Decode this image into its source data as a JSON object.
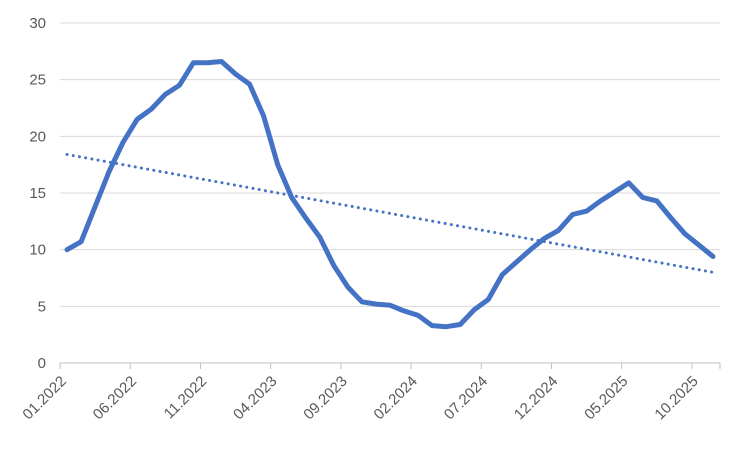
{
  "chart_data": {
    "type": "line",
    "title": "",
    "xlabel": "",
    "ylabel": "",
    "ylim": [
      0,
      30
    ],
    "y_ticks": [
      0,
      5,
      10,
      15,
      20,
      25,
      30
    ],
    "grid": true,
    "legend": "none",
    "x": [
      "01.2022",
      "02.2022",
      "03.2022",
      "04.2022",
      "05.2022",
      "06.2022",
      "07.2022",
      "08.2022",
      "09.2022",
      "10.2022",
      "11.2022",
      "12.2022",
      "01.2023",
      "02.2023",
      "03.2023",
      "04.2023",
      "05.2023",
      "06.2023",
      "07.2023",
      "08.2023",
      "09.2023",
      "10.2023",
      "11.2023",
      "12.2023",
      "01.2024",
      "02.2024",
      "03.2024",
      "04.2024",
      "05.2024",
      "06.2024",
      "07.2024",
      "08.2024",
      "09.2024",
      "10.2024",
      "11.2024",
      "12.2024",
      "01.2025",
      "02.2025",
      "03.2025",
      "04.2025",
      "05.2025",
      "06.2025",
      "07.2025",
      "08.2025",
      "09.2025",
      "10.2025",
      "11.2025"
    ],
    "x_tick_labels": [
      "01.2022",
      "06.2022",
      "11.2022",
      "04.2023",
      "09.2023",
      "02.2024",
      "07.2024",
      "12.2024",
      "05.2025",
      "10.2025"
    ],
    "x_label_every": 5,
    "series": [
      {
        "name": "main-series",
        "style": "solid",
        "values": [
          10.0,
          10.7,
          13.8,
          16.9,
          19.5,
          21.5,
          22.4,
          23.7,
          24.5,
          26.5,
          26.5,
          26.6,
          25.5,
          24.6,
          21.8,
          17.5,
          14.6,
          12.8,
          11.1,
          8.6,
          6.7,
          5.4,
          5.2,
          5.1,
          4.6,
          4.2,
          3.3,
          3.2,
          3.4,
          4.7,
          5.6,
          7.8,
          8.9,
          10.0,
          11.0,
          11.7,
          13.1,
          13.4,
          14.3,
          15.1,
          15.9,
          14.6,
          14.3,
          12.8,
          11.4,
          10.4,
          9.4
        ]
      }
    ],
    "trendline": {
      "name": "linear-trendline",
      "style": "dotted",
      "start_value": 18.4,
      "end_value": 8.0
    },
    "colors": {
      "series": "#4472C4",
      "trendline": "#4472C4",
      "gridline": "#D9D9D9",
      "axis": "#BFBFBF",
      "tick_label": "#595959"
    }
  }
}
